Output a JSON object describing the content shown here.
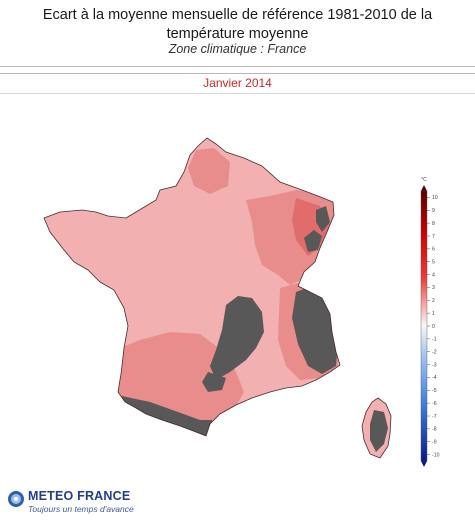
{
  "header": {
    "title": "Ecart à la moyenne mensuelle de référence 1981-2010 de la température moyenne",
    "subtitle": "Zone climatique : France"
  },
  "period": "Janvier 2014",
  "legend": {
    "unit": "°C",
    "ticks": [
      "10",
      "9",
      "8",
      "7",
      "6",
      "5",
      "4",
      "3",
      "2",
      "1",
      "0",
      "-1",
      "-2",
      "-3",
      "-4",
      "-5",
      "-6",
      "-7",
      "-8",
      "-9",
      "-10"
    ],
    "colors": {
      "max": "#5a0000",
      "warm_dark": "#c80000",
      "warm": "#f03838",
      "warm_light": "#f5a6a6",
      "neutral": "#f7f7f7",
      "cool_light": "#a8c8f0",
      "cool": "#3a78e0",
      "min": "#0a1a8a"
    }
  },
  "map_colors": {
    "base_anomaly": "#f2b0b0",
    "stronger_anomaly": "#e98c8c",
    "strongest_anomaly": "#e06c6c",
    "no_data_relief": "#585858",
    "sea": "#ffffff",
    "border": "#4a2a2a"
  },
  "footer": {
    "brand": "METEO FRANCE",
    "tagline": "Toujours un temps d'avance"
  }
}
